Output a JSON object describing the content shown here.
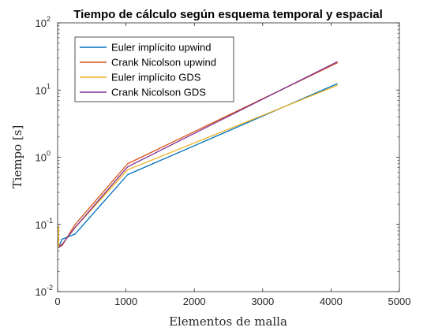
{
  "chart_data": {
    "type": "line",
    "title": "Tiempo de cálculo según esquema temporal y espacial",
    "xlabel": "Elementos de malla",
    "ylabel": "Tiempo [s]",
    "xlim": [
      0,
      5000
    ],
    "ylim": [
      0.01,
      100
    ],
    "yscale": "log",
    "grid": false,
    "legend_position": "top-left",
    "x_ticks": [
      "0",
      "1000",
      "2000",
      "3000",
      "4000",
      "5000"
    ],
    "y_ticks": [
      {
        "value": 0.01,
        "base": "10",
        "exp": "-2"
      },
      {
        "value": 0.1,
        "base": "10",
        "exp": "-1"
      },
      {
        "value": 1,
        "base": "10",
        "exp": "0"
      },
      {
        "value": 10,
        "base": "10",
        "exp": "1"
      },
      {
        "value": 100,
        "base": "10",
        "exp": "2"
      }
    ],
    "series": [
      {
        "name": "Euler implícito upwind",
        "color": "#0072BD",
        "x": [
          16,
          64,
          256,
          1024,
          4096
        ],
        "y": [
          0.045,
          0.06,
          0.072,
          0.55,
          12.5
        ]
      },
      {
        "name": "Crank Nicolson upwind",
        "color": "#D95319",
        "x": [
          16,
          64,
          256,
          1024,
          4096
        ],
        "y": [
          0.05,
          0.048,
          0.1,
          0.8,
          25.5
        ]
      },
      {
        "name": "Euler implícito GDS",
        "color": "#EDB120",
        "x": [
          16,
          16,
          64,
          256,
          1024,
          4096
        ],
        "y": [
          0.095,
          0.045,
          0.05,
          0.09,
          0.65,
          11.8
        ]
      },
      {
        "name": "Crank Nicolson GDS",
        "color": "#7E2F8E",
        "x": [
          16,
          64,
          256,
          1024,
          4096
        ],
        "y": [
          0.045,
          0.05,
          0.09,
          0.72,
          26.5
        ]
      }
    ]
  }
}
